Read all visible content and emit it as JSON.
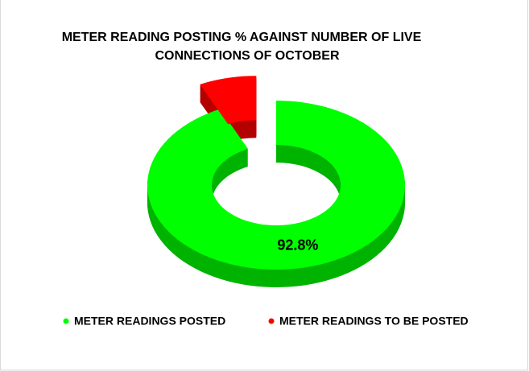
{
  "chart_data": {
    "type": "donut3d",
    "title": "METER READING POSTING % AGAINST NUMBER OF LIVE CONNECTIONS OF OCTOBER",
    "categories": [
      "METER READINGS POSTED",
      "METER READINGS TO BE POSTED"
    ],
    "values": [
      92.8,
      7.2
    ],
    "value_labels": [
      "92.8%",
      null
    ],
    "colors": [
      "#00ff00",
      "#ff0000"
    ],
    "legend": "bottom"
  }
}
